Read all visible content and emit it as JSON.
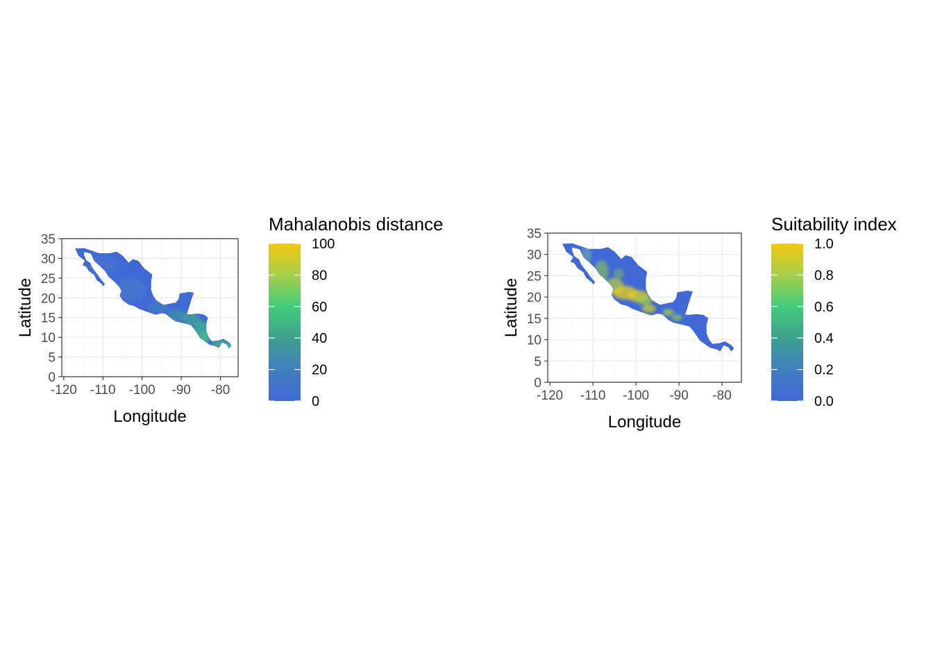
{
  "colors": {
    "scale_low": "#4169d6",
    "scale_mid1": "#3f8ab1",
    "scale_mid2": "#42cc7a",
    "scale_high": "#f2c80f",
    "grid": "#ebebeb",
    "axis": "#333333"
  },
  "chart_data": [
    {
      "type": "heatmap",
      "title": "",
      "xlabel": "Longitude",
      "ylabel": "Latitude",
      "xlim": [
        -120.5,
        -75.5
      ],
      "ylim": [
        0,
        35
      ],
      "x_ticks": [
        -120,
        -110,
        -100,
        -90,
        -80
      ],
      "x_tick_labels": [
        "-120",
        "-110",
        "-100",
        "-90",
        "-80"
      ],
      "y_ticks": [
        0,
        5,
        10,
        15,
        20,
        25,
        30,
        35
      ],
      "y_tick_labels": [
        "0",
        "5",
        "10",
        "15",
        "20",
        "25",
        "30",
        "35"
      ],
      "grid": true,
      "legend": {
        "title": "Mahalanobis distance",
        "placement": "right",
        "range": [
          0,
          100
        ],
        "breaks": [
          0,
          20,
          40,
          60,
          80,
          100
        ],
        "labels": [
          "0",
          "20",
          "40",
          "60",
          "80",
          "100"
        ]
      },
      "description_values": {
        "mexico_north": 10,
        "mexico_south": 18,
        "central_america": 40,
        "panama": 45
      }
    },
    {
      "type": "heatmap",
      "title": "",
      "xlabel": "Longitude",
      "ylabel": "Latitude",
      "xlim": [
        -120.5,
        -75.5
      ],
      "ylim": [
        0,
        35
      ],
      "x_ticks": [
        -120,
        -110,
        -100,
        -90,
        -80
      ],
      "x_tick_labels": [
        "-120",
        "-110",
        "-100",
        "-90",
        "-80"
      ],
      "y_ticks": [
        0,
        5,
        10,
        15,
        20,
        25,
        30,
        35
      ],
      "y_tick_labels": [
        "0",
        "5",
        "10",
        "15",
        "20",
        "25",
        "30",
        "35"
      ],
      "grid": true,
      "legend": {
        "title": "Suitability index",
        "placement": "right",
        "range": [
          0,
          1
        ],
        "breaks": [
          0,
          0.2,
          0.4,
          0.6,
          0.8,
          1.0
        ],
        "labels": [
          "0.0",
          "0.2",
          "0.4",
          "0.6",
          "0.8",
          "1.0"
        ]
      },
      "description_values": {
        "lowlands": 0.05,
        "sierra_madre": 0.55,
        "central_highlands": 0.75,
        "chiapas": 0.5
      }
    }
  ]
}
